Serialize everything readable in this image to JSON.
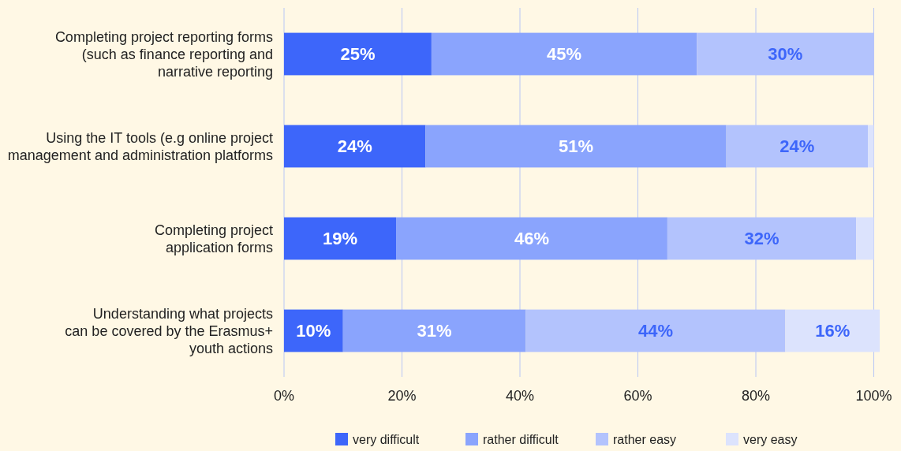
{
  "chart_data": {
    "type": "bar",
    "orientation": "horizontal",
    "stacked": true,
    "categories": [
      "Completing project reporting forms\n(such as finance reporting and\nnarrative reporting",
      "Using the IT tools (e.g online project\nmanagement and administration platforms",
      "Completing project\napplication forms",
      "Understanding what projects\ncan be covered by the Erasmus+\nyouth actions"
    ],
    "series": [
      {
        "name": "very difficult",
        "color": "#3d66fa",
        "values": [
          25,
          24,
          19,
          10
        ],
        "value_labels": [
          "25%",
          "24%",
          "19%",
          "10%"
        ]
      },
      {
        "name": "rather difficult",
        "color": "#8aa4fd",
        "values": [
          45,
          51,
          46,
          31
        ],
        "value_labels": [
          "45%",
          "51%",
          "46%",
          "31%"
        ]
      },
      {
        "name": "rather easy",
        "color": "#b3c3fd",
        "values": [
          30,
          24,
          32,
          44
        ],
        "value_labels": [
          "30%",
          "24%",
          "32%",
          "44%"
        ]
      },
      {
        "name": "very easy",
        "color": "#dce3fd",
        "values": [
          0,
          1,
          3,
          16
        ],
        "value_labels": [
          null,
          null,
          null,
          "16%"
        ]
      }
    ],
    "xlim": [
      0,
      101
    ],
    "xticks": [
      {
        "value": 0,
        "label": "0%"
      },
      {
        "value": 20,
        "label": "20%"
      },
      {
        "value": 40,
        "label": "40%"
      },
      {
        "value": 60,
        "label": "60%"
      },
      {
        "value": 80,
        "label": "80%"
      },
      {
        "value": 100,
        "label": "100%"
      }
    ],
    "grid": "x",
    "legend": "bottom"
  }
}
